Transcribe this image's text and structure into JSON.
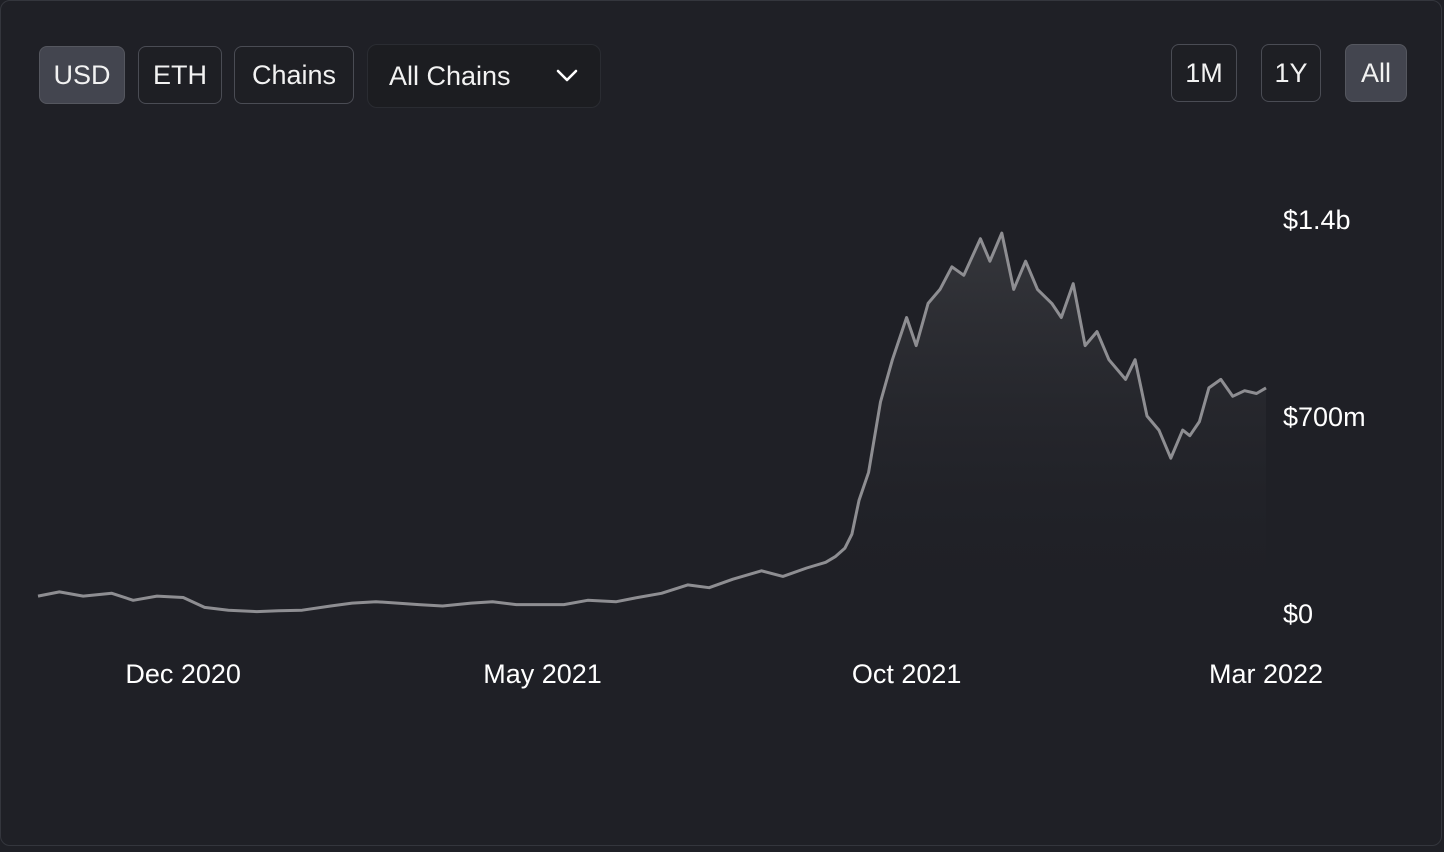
{
  "toolbar": {
    "currency_buttons": [
      {
        "label": "USD",
        "active": true
      },
      {
        "label": "ETH",
        "active": false
      },
      {
        "label": "Chains",
        "active": false
      }
    ],
    "chain_select": {
      "selected": "All Chains",
      "icon": "chevron-down-icon"
    },
    "range_buttons": [
      {
        "label": "1M",
        "active": false
      },
      {
        "label": "1Y",
        "active": false
      },
      {
        "label": "All",
        "active": true
      }
    ]
  },
  "colors": {
    "background": "#1f2026",
    "line": "#8e8e92",
    "active_button": "#43454f",
    "button_border": "#4a4c54"
  },
  "chart_data": {
    "type": "area",
    "title": "",
    "xlabel": "",
    "ylabel": "",
    "x_range": [
      "2020-10-01",
      "2022-03-01"
    ],
    "ylim": [
      0,
      1400000000
    ],
    "y_ticks": [
      {
        "value": 0,
        "label": "$0"
      },
      {
        "value": 700000000,
        "label": "$700m"
      },
      {
        "value": 1400000000,
        "label": "$1.4b"
      }
    ],
    "x_ticks": [
      {
        "date": "2020-12-01",
        "label": "Dec 2020"
      },
      {
        "date": "2021-05-01",
        "label": "May 2021"
      },
      {
        "date": "2021-10-01",
        "label": "Oct 2021"
      },
      {
        "date": "2022-03-01",
        "label": "Mar 2022"
      }
    ],
    "grid": false,
    "legend": "none",
    "series": [
      {
        "x": [
          "2020-10-01",
          "2020-10-10",
          "2020-10-20",
          "2020-11-01",
          "2020-11-10",
          "2020-11-20",
          "2020-12-01",
          "2020-12-10",
          "2020-12-20",
          "2021-01-01",
          "2021-01-10",
          "2021-01-20",
          "2021-02-01",
          "2021-02-10",
          "2021-02-20",
          "2021-03-01",
          "2021-03-10",
          "2021-03-20",
          "2021-04-01",
          "2021-04-10",
          "2021-04-20",
          "2021-05-01",
          "2021-05-10",
          "2021-05-20",
          "2021-06-01",
          "2021-06-10",
          "2021-06-20",
          "2021-07-01",
          "2021-07-10",
          "2021-07-20",
          "2021-08-01",
          "2021-08-10",
          "2021-08-20",
          "2021-08-28",
          "2021-09-01",
          "2021-09-05",
          "2021-09-08",
          "2021-09-11",
          "2021-09-15",
          "2021-09-20",
          "2021-09-25",
          "2021-10-01",
          "2021-10-05",
          "2021-10-10",
          "2021-10-15",
          "2021-10-20",
          "2021-10-25",
          "2021-11-01",
          "2021-11-05",
          "2021-11-10",
          "2021-11-15",
          "2021-11-20",
          "2021-11-25",
          "2021-12-01",
          "2021-12-05",
          "2021-12-10",
          "2021-12-15",
          "2021-12-20",
          "2021-12-25",
          "2022-01-01",
          "2022-01-05",
          "2022-01-10",
          "2022-01-15",
          "2022-01-20",
          "2022-01-25",
          "2022-01-28",
          "2022-02-01",
          "2022-02-05",
          "2022-02-10",
          "2022-02-15",
          "2022-02-20",
          "2022-02-25",
          "2022-03-01"
        ],
        "values": [
          60000000,
          75000000,
          60000000,
          70000000,
          45000000,
          60000000,
          55000000,
          20000000,
          10000000,
          5000000,
          8000000,
          10000000,
          25000000,
          35000000,
          40000000,
          35000000,
          30000000,
          25000000,
          35000000,
          40000000,
          30000000,
          30000000,
          30000000,
          45000000,
          40000000,
          55000000,
          70000000,
          100000000,
          90000000,
          120000000,
          150000000,
          130000000,
          160000000,
          180000000,
          200000000,
          230000000,
          280000000,
          400000000,
          500000000,
          750000000,
          900000000,
          1050000000,
          950000000,
          1100000000,
          1150000000,
          1230000000,
          1200000000,
          1330000000,
          1250000000,
          1350000000,
          1150000000,
          1250000000,
          1150000000,
          1100000000,
          1050000000,
          1170000000,
          950000000,
          1000000000,
          900000000,
          830000000,
          900000000,
          700000000,
          650000000,
          550000000,
          650000000,
          630000000,
          680000000,
          800000000,
          830000000,
          770000000,
          790000000,
          780000000,
          800000000
        ]
      }
    ]
  }
}
